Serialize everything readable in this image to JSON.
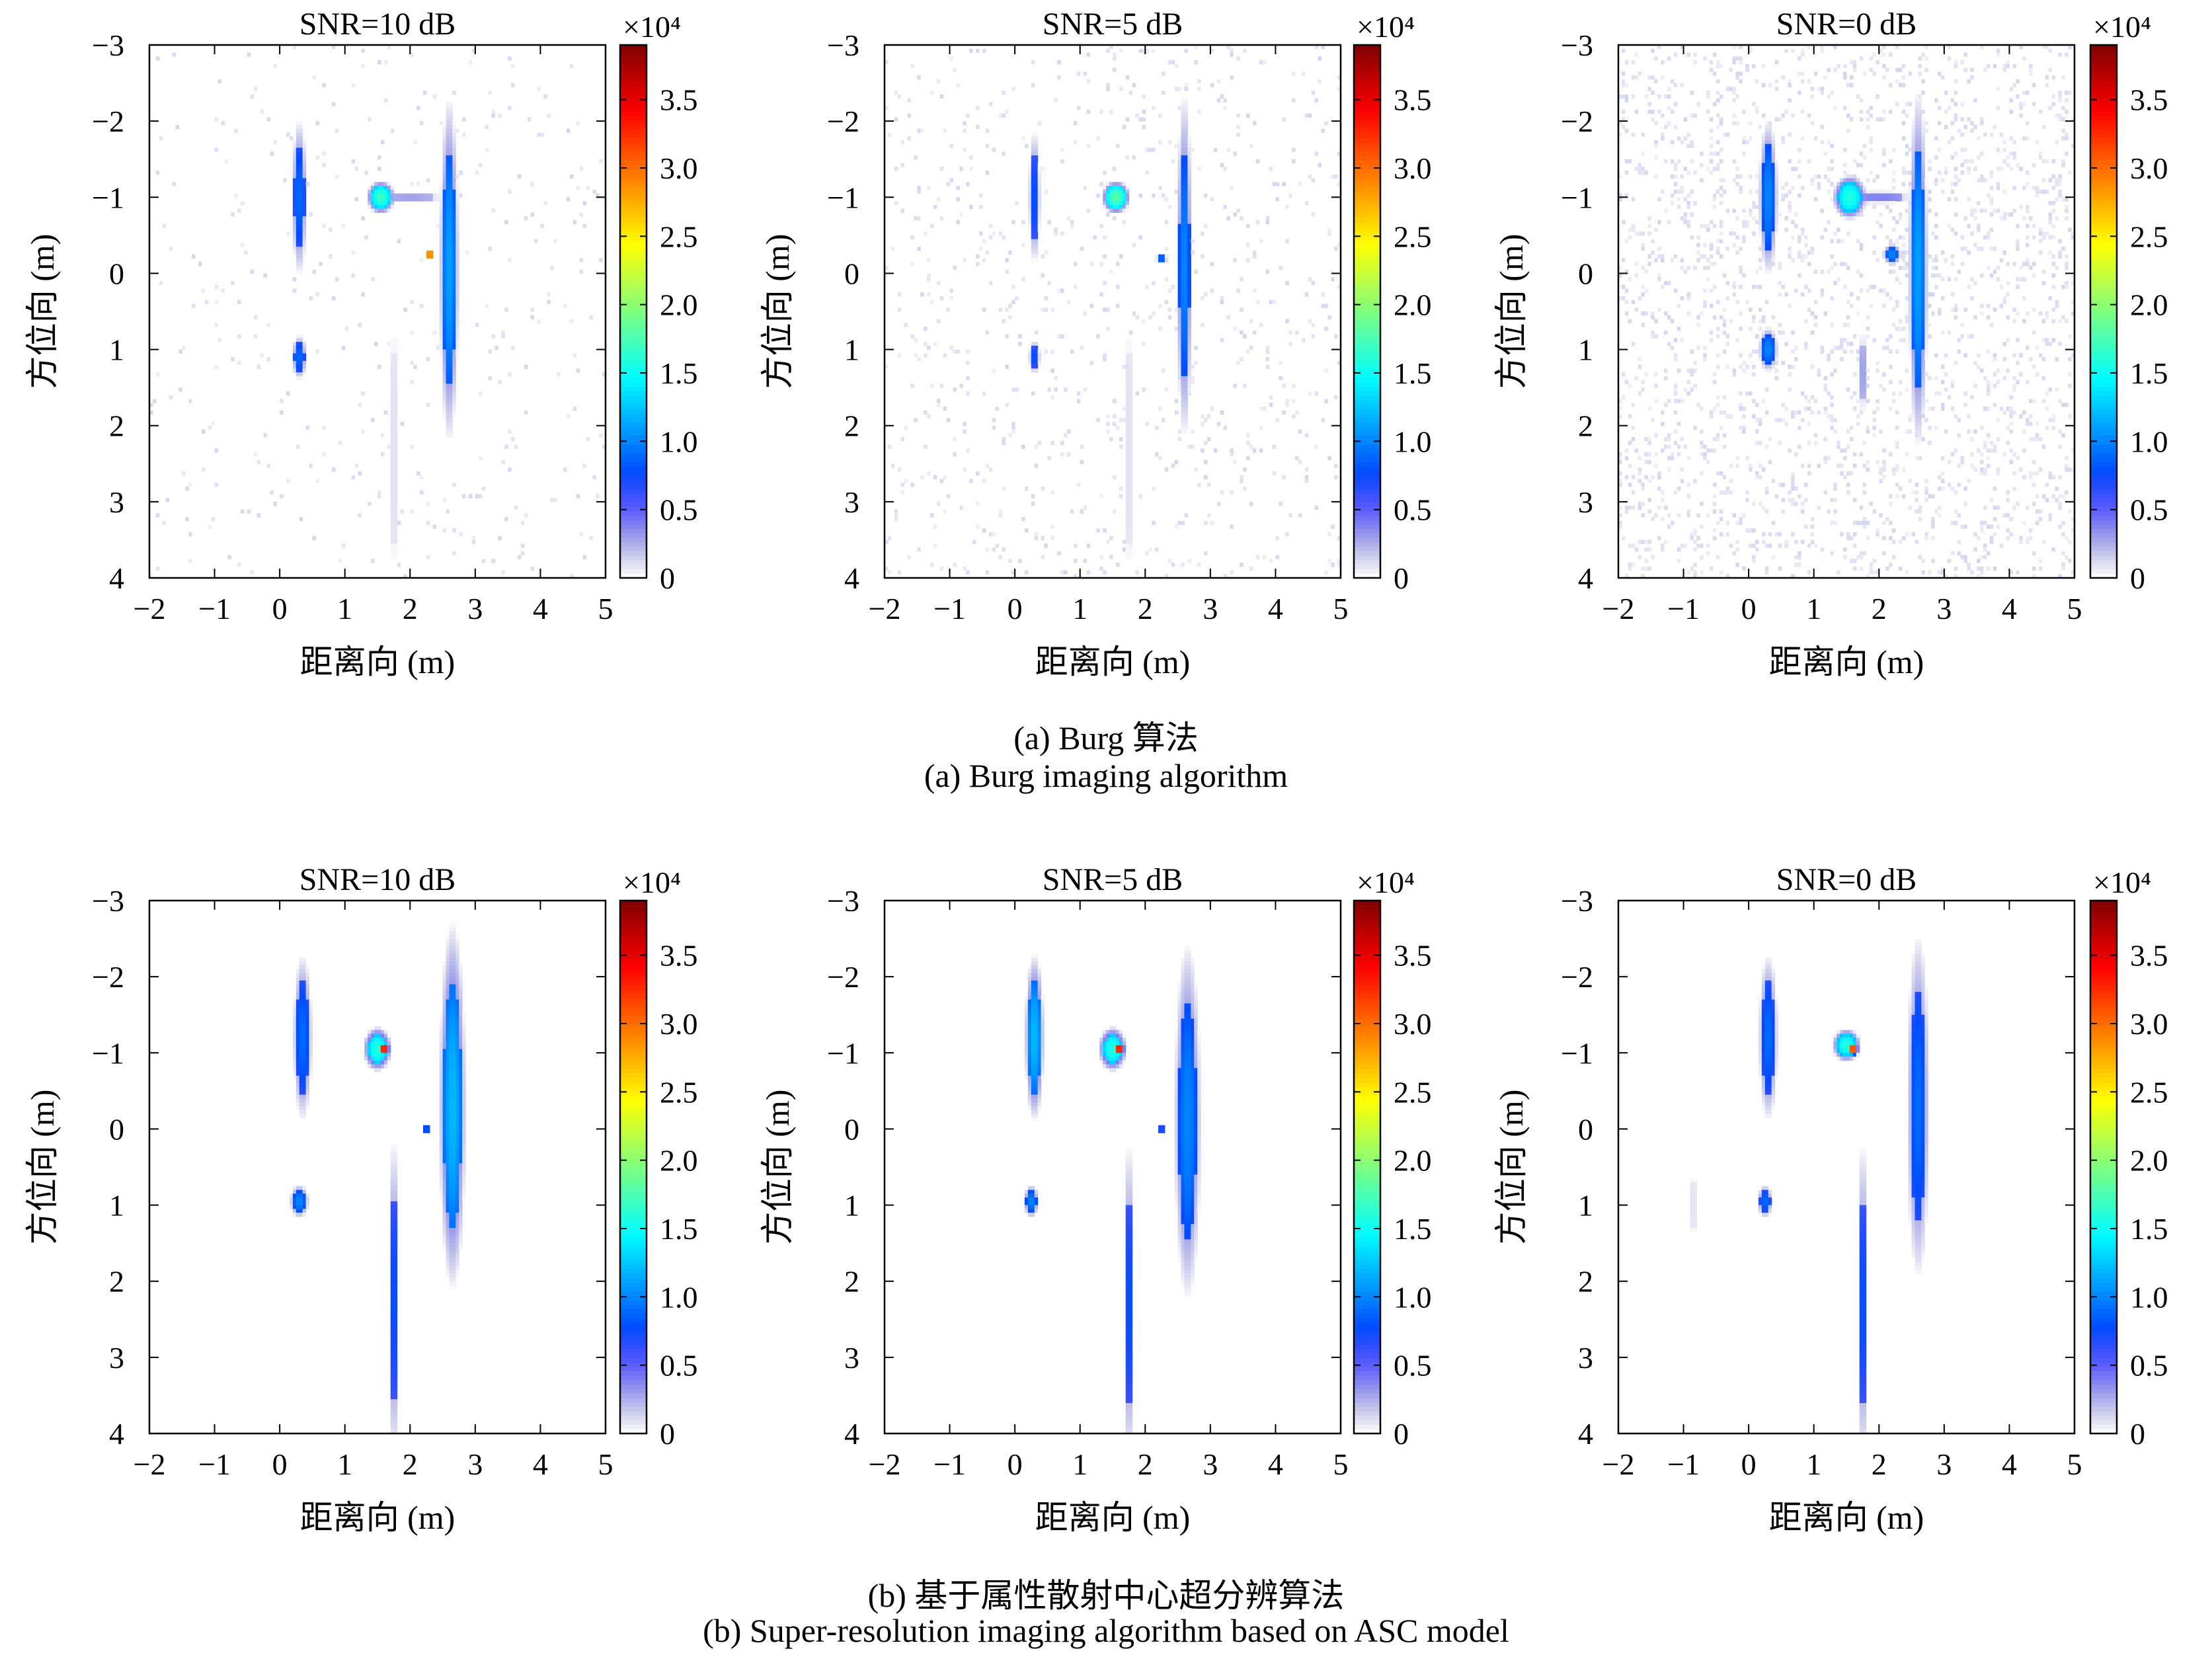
{
  "figure": {
    "rows": [
      {
        "caption_cn": "(a) Burg 算法",
        "caption_en": "(a) Burg imaging algorithm"
      },
      {
        "caption_cn": "(b) 基于属性散射中心超分辨算法",
        "caption_en": "(b) Super-resolution imaging algorithm based on ASC model"
      }
    ]
  },
  "chart_data": [
    {
      "type": "heatmap",
      "row": 0,
      "col": 0,
      "method": "burg",
      "title": "SNR=10 dB",
      "xlabel": "距离向 (m)",
      "ylabel": "方位向 (m)",
      "xlim": [
        -2,
        5
      ],
      "ylim": [
        -3,
        4
      ],
      "xticks": [
        "−2",
        "−1",
        "0",
        "1",
        "2",
        "3",
        "4",
        "5"
      ],
      "yticks": [
        "−3",
        "−2",
        "−1",
        "0",
        "1",
        "2",
        "3",
        "4"
      ],
      "colorbar": {
        "multiplier": "×10⁴",
        "range": [
          0,
          3.9
        ],
        "ticks": [
          "0",
          "0.5",
          "1.0",
          "1.5",
          "2.0",
          "2.5",
          "3.0",
          "3.5"
        ],
        "colormap": "jet"
      },
      "noise": 0.02,
      "blobs": [
        {
          "x": 0.3,
          "y": -1.0,
          "rx": 0.08,
          "ry": 0.7,
          "v": 0.9
        },
        {
          "x": 0.3,
          "y": 1.1,
          "rx": 0.08,
          "ry": 0.2,
          "v": 0.9
        },
        {
          "x": 1.55,
          "y": -1.0,
          "rx": 0.15,
          "ry": 0.15,
          "v": 1.7
        },
        {
          "x": 2.0,
          "y": -1.0,
          "rx": 0.4,
          "ry": 0.05,
          "v": 0.3
        },
        {
          "x": 2.6,
          "y": -0.05,
          "rx": 0.1,
          "ry": 1.55,
          "v": 1.1
        },
        {
          "x": 2.3,
          "y": -0.25,
          "rx": 0.05,
          "ry": 0.04,
          "v": 3.4
        },
        {
          "x": 1.75,
          "y": 2.3,
          "rx": 0.04,
          "ry": 1.6,
          "v": 0.1
        }
      ]
    },
    {
      "type": "heatmap",
      "row": 0,
      "col": 1,
      "method": "burg",
      "title": "SNR=5 dB",
      "xlabel": "距离向 (m)",
      "ylabel": "方位向 (m)",
      "xlim": [
        -2,
        5
      ],
      "ylim": [
        -3,
        4
      ],
      "xticks": [
        "−2",
        "−1",
        "0",
        "1",
        "2",
        "3",
        "4",
        "5"
      ],
      "yticks": [
        "−3",
        "−2",
        "−1",
        "0",
        "1",
        "2",
        "3",
        "4"
      ],
      "colorbar": {
        "multiplier": "×10⁴",
        "range": [
          0,
          3.9
        ],
        "ticks": [
          "0",
          "0.5",
          "1.0",
          "1.5",
          "2.0",
          "2.5",
          "3.0",
          "3.5"
        ],
        "colormap": "jet"
      },
      "noise": 0.04,
      "blobs": [
        {
          "x": 0.3,
          "y": -1.0,
          "rx": 0.06,
          "ry": 0.6,
          "v": 0.8
        },
        {
          "x": 0.3,
          "y": 1.1,
          "rx": 0.06,
          "ry": 0.15,
          "v": 0.8
        },
        {
          "x": 1.55,
          "y": -1.0,
          "rx": 0.15,
          "ry": 0.15,
          "v": 1.8
        },
        {
          "x": 2.6,
          "y": -0.1,
          "rx": 0.08,
          "ry": 1.55,
          "v": 1.0
        },
        {
          "x": 2.25,
          "y": -0.2,
          "rx": 0.06,
          "ry": 0.04,
          "v": 1.0
        },
        {
          "x": 1.75,
          "y": 2.3,
          "rx": 0.04,
          "ry": 1.6,
          "v": 0.1
        }
      ]
    },
    {
      "type": "heatmap",
      "row": 0,
      "col": 2,
      "method": "burg",
      "title": "SNR=0 dB",
      "xlabel": "距离向 (m)",
      "ylabel": "方位向 (m)",
      "xlim": [
        -2,
        5
      ],
      "ylim": [
        -3,
        4
      ],
      "xticks": [
        "−2",
        "−1",
        "0",
        "1",
        "2",
        "3",
        "4",
        "5"
      ],
      "yticks": [
        "−3",
        "−2",
        "−1",
        "0",
        "1",
        "2",
        "3",
        "4"
      ],
      "colorbar": {
        "multiplier": "×10⁴",
        "range": [
          0,
          3.9
        ],
        "ticks": [
          "0",
          "0.5",
          "1.0",
          "1.5",
          "2.0",
          "2.5",
          "3.0",
          "3.5"
        ],
        "colormap": "jet"
      },
      "noise": 0.12,
      "blobs": [
        {
          "x": 0.3,
          "y": -1.0,
          "rx": 0.1,
          "ry": 0.7,
          "v": 1.0
        },
        {
          "x": 0.3,
          "y": 1.0,
          "rx": 0.1,
          "ry": 0.2,
          "v": 1.0
        },
        {
          "x": 1.55,
          "y": -1.0,
          "rx": 0.18,
          "ry": 0.2,
          "v": 1.6
        },
        {
          "x": 2.0,
          "y": -1.0,
          "rx": 0.4,
          "ry": 0.06,
          "v": 0.4
        },
        {
          "x": 2.6,
          "y": -0.05,
          "rx": 0.1,
          "ry": 1.6,
          "v": 1.1
        },
        {
          "x": 2.2,
          "y": -0.25,
          "rx": 0.1,
          "ry": 0.1,
          "v": 1.0
        },
        {
          "x": 1.75,
          "y": 1.3,
          "rx": 0.05,
          "ry": 0.4,
          "v": 0.3
        }
      ]
    },
    {
      "type": "heatmap",
      "row": 1,
      "col": 0,
      "method": "asc",
      "title": "SNR=10 dB",
      "xlabel": "距离向 (m)",
      "ylabel": "方位向 (m)",
      "xlim": [
        -2,
        5
      ],
      "ylim": [
        -3,
        4
      ],
      "xticks": [
        "−2",
        "−1",
        "0",
        "1",
        "2",
        "3",
        "4",
        "5"
      ],
      "yticks": [
        "−3",
        "−2",
        "−1",
        "0",
        "1",
        "2",
        "3",
        "4"
      ],
      "colorbar": {
        "multiplier": "×10⁴",
        "range": [
          0,
          3.9
        ],
        "ticks": [
          "0",
          "0.5",
          "1.0",
          "1.5",
          "2.0",
          "2.5",
          "3.0",
          "3.5"
        ],
        "colormap": "jet"
      },
      "noise": 0,
      "blobs": [
        {
          "x": 0.35,
          "y": -1.2,
          "rx": 0.1,
          "ry": 0.75,
          "v": 0.9
        },
        {
          "x": 0.3,
          "y": 0.95,
          "rx": 0.1,
          "ry": 0.15,
          "v": 1.0
        },
        {
          "x": 1.5,
          "y": -1.05,
          "rx": 0.15,
          "ry": 0.2,
          "v": 1.6
        },
        {
          "x": 1.6,
          "y": -1.05,
          "rx": 0.06,
          "ry": 0.08,
          "v": 3.5
        },
        {
          "x": 2.65,
          "y": -0.3,
          "rx": 0.14,
          "ry": 1.65,
          "v": 1.2
        },
        {
          "x": 2.25,
          "y": 0.0,
          "rx": 0.05,
          "ry": 0.05,
          "v": 0.9
        },
        {
          "x": 1.75,
          "y": 2.25,
          "rx": 0.05,
          "ry": 1.5,
          "v": 0.8
        }
      ]
    },
    {
      "type": "heatmap",
      "row": 1,
      "col": 1,
      "method": "asc",
      "title": "SNR=5 dB",
      "xlabel": "距离向 (m)",
      "ylabel": "方位向 (m)",
      "xlim": [
        -2,
        5
      ],
      "ylim": [
        -3,
        4
      ],
      "xticks": [
        "−2",
        "−1",
        "0",
        "1",
        "2",
        "3",
        "4",
        "5"
      ],
      "yticks": [
        "−3",
        "−2",
        "−1",
        "0",
        "1",
        "2",
        "3",
        "4"
      ],
      "colorbar": {
        "multiplier": "×10⁴",
        "range": [
          0,
          3.9
        ],
        "ticks": [
          "0",
          "0.5",
          "1.0",
          "1.5",
          "2.0",
          "2.5",
          "3.0",
          "3.5"
        ],
        "colormap": "jet"
      },
      "noise": 0,
      "blobs": [
        {
          "x": 0.3,
          "y": -1.2,
          "rx": 0.1,
          "ry": 0.75,
          "v": 1.2
        },
        {
          "x": 0.25,
          "y": 0.95,
          "rx": 0.08,
          "ry": 0.15,
          "v": 1.0
        },
        {
          "x": 1.5,
          "y": -1.05,
          "rx": 0.15,
          "ry": 0.2,
          "v": 1.6
        },
        {
          "x": 1.6,
          "y": -1.05,
          "rx": 0.06,
          "ry": 0.08,
          "v": 3.5
        },
        {
          "x": 2.65,
          "y": -0.1,
          "rx": 0.14,
          "ry": 1.6,
          "v": 1.0
        },
        {
          "x": 2.25,
          "y": 0.0,
          "rx": 0.05,
          "ry": 0.05,
          "v": 0.8
        },
        {
          "x": 1.75,
          "y": 2.3,
          "rx": 0.05,
          "ry": 1.5,
          "v": 0.8
        }
      ]
    },
    {
      "type": "heatmap",
      "row": 1,
      "col": 2,
      "method": "asc",
      "title": "SNR=0 dB",
      "xlabel": "距离向 (m)",
      "ylabel": "方位向 (m)",
      "xlim": [
        -2,
        5
      ],
      "ylim": [
        -3,
        4
      ],
      "xticks": [
        "−2",
        "−1",
        "0",
        "1",
        "2",
        "3",
        "4",
        "5"
      ],
      "yticks": [
        "−3",
        "−2",
        "−1",
        "0",
        "1",
        "2",
        "3",
        "4"
      ],
      "colorbar": {
        "multiplier": "×10⁴",
        "range": [
          0,
          3.9
        ],
        "ticks": [
          "0",
          "0.5",
          "1.0",
          "1.5",
          "2.0",
          "2.5",
          "3.0",
          "3.5"
        ],
        "colormap": "jet"
      },
      "noise": 0,
      "blobs": [
        {
          "x": 0.3,
          "y": -1.2,
          "rx": 0.1,
          "ry": 0.75,
          "v": 0.9
        },
        {
          "x": 0.25,
          "y": 0.95,
          "rx": 0.08,
          "ry": 0.15,
          "v": 0.9
        },
        {
          "x": 1.5,
          "y": -1.1,
          "rx": 0.15,
          "ry": 0.15,
          "v": 1.6
        },
        {
          "x": 1.6,
          "y": -1.05,
          "rx": 0.06,
          "ry": 0.08,
          "v": 3.3
        },
        {
          "x": 2.6,
          "y": -0.3,
          "rx": 0.12,
          "ry": 1.55,
          "v": 0.9
        },
        {
          "x": 1.75,
          "y": 2.3,
          "rx": 0.05,
          "ry": 1.5,
          "v": 0.8
        },
        {
          "x": -0.85,
          "y": 1.0,
          "rx": 0.03,
          "ry": 0.5,
          "v": 0.1
        }
      ]
    }
  ]
}
